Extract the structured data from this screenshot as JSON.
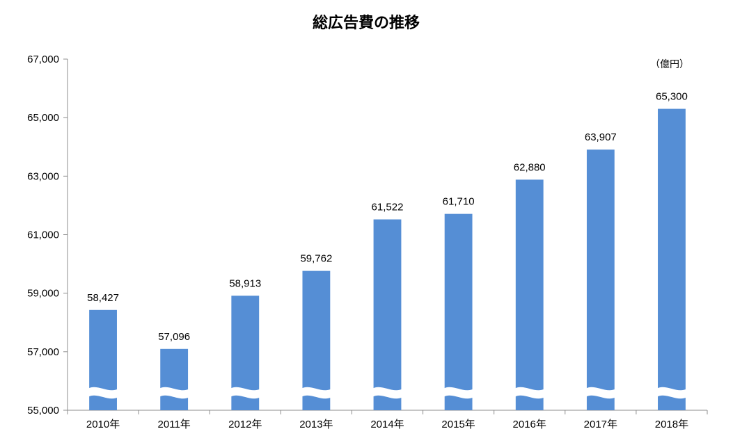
{
  "chart_data": {
    "type": "bar",
    "title": "総広告費の推移",
    "unit": "（億円）",
    "categories": [
      "2010年",
      "2011年",
      "2012年",
      "2013年",
      "2014年",
      "2015年",
      "2016年",
      "2017年",
      "2018年"
    ],
    "values": [
      58427,
      57096,
      58913,
      59762,
      61522,
      61710,
      62880,
      63907,
      65300
    ],
    "value_labels": [
      "58,427",
      "57,096",
      "58,913",
      "59,762",
      "61,522",
      "61,710",
      "62,880",
      "63,907",
      "65,300"
    ],
    "ylim": [
      55000,
      67000
    ],
    "yticks": [
      55000,
      57000,
      59000,
      61000,
      63000,
      65000,
      67000
    ],
    "ytick_labels": [
      "55,000",
      "57,000",
      "59,000",
      "61,000",
      "63,000",
      "65,000",
      "67,000"
    ],
    "axis_break": true,
    "grid": false,
    "bar_color": "#558ED5",
    "xlabel": "",
    "ylabel": ""
  }
}
